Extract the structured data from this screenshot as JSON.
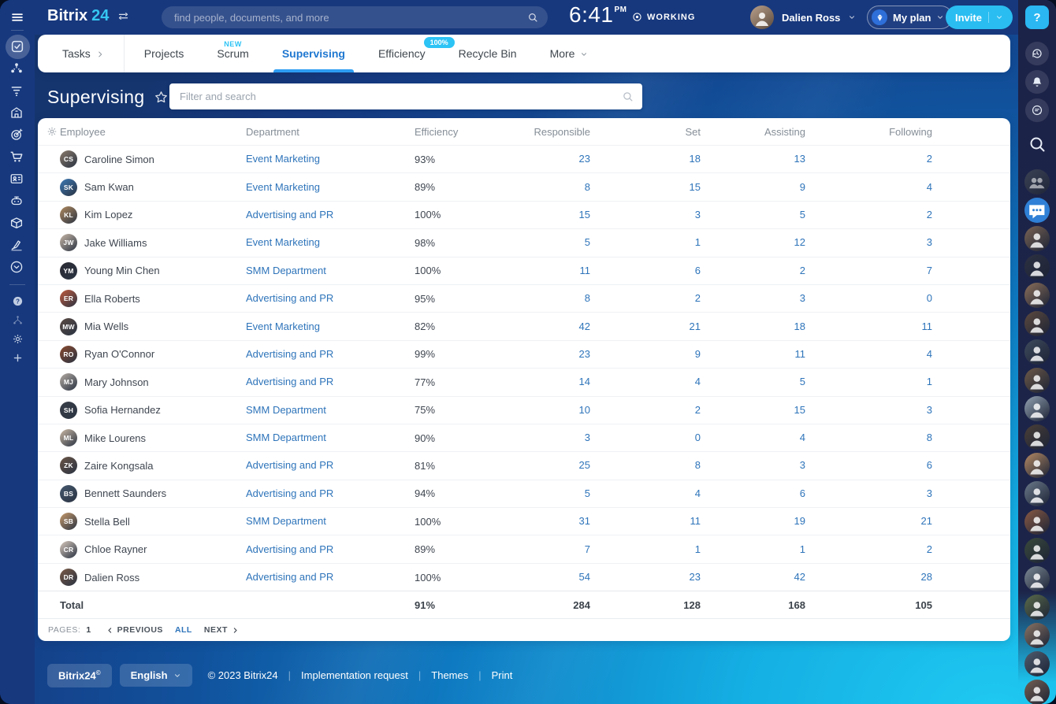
{
  "topbar": {
    "logo_part1": "Bitrix",
    "logo_part2": "24",
    "search_placeholder": "find people, documents, and more",
    "time": "6:41",
    "meridiem": "PM",
    "status": "WORKING",
    "user_name": "Dalien Ross",
    "plan_label": "My plan",
    "invite_label": "Invite",
    "help_label": "?"
  },
  "left_rail": {
    "main_items": [
      {
        "name": "tasks",
        "active": true
      },
      {
        "name": "collaboration",
        "active": false
      },
      {
        "name": "crm",
        "active": false
      },
      {
        "name": "company",
        "active": false
      },
      {
        "name": "marketing",
        "active": false
      },
      {
        "name": "sales",
        "active": false
      },
      {
        "name": "hr",
        "active": false
      },
      {
        "name": "automation",
        "active": false
      },
      {
        "name": "inventory",
        "active": false
      },
      {
        "name": "sign",
        "active": false
      },
      {
        "name": "collapse",
        "active": false
      }
    ],
    "bottom_items": [
      {
        "name": "help"
      },
      {
        "name": "sitemap"
      },
      {
        "name": "settings"
      },
      {
        "name": "add"
      }
    ]
  },
  "tabs": [
    {
      "label": "Tasks",
      "chevron": "right",
      "divider_after": true
    },
    {
      "label": "Projects"
    },
    {
      "label": "Scrum",
      "badge": "NEW",
      "badge_type": "text"
    },
    {
      "label": "Supervising",
      "active": true
    },
    {
      "label": "Efficiency",
      "badge": "100%",
      "badge_type": "pill"
    },
    {
      "label": "Recycle Bin"
    },
    {
      "label": "More",
      "chevron": "down"
    }
  ],
  "page": {
    "title": "Supervising",
    "filter_placeholder": "Filter and search"
  },
  "table": {
    "headers": [
      "Employee",
      "Department",
      "Efficiency",
      "Responsible",
      "Set",
      "Assisting",
      "Following"
    ],
    "rows": [
      {
        "name": "Caroline Simon",
        "department": "Event Marketing",
        "efficiency": "93%",
        "responsible": "23",
        "set": "18",
        "assisting": "13",
        "following": "2",
        "avatar_color": "#8a7a6b"
      },
      {
        "name": "Sam Kwan",
        "department": "Event Marketing",
        "efficiency": "89%",
        "responsible": "8",
        "set": "15",
        "assisting": "9",
        "following": "4",
        "avatar_color": "#3d7ab5"
      },
      {
        "name": "Kim Lopez",
        "department": "Advertising and PR",
        "efficiency": "100%",
        "responsible": "15",
        "set": "3",
        "assisting": "5",
        "following": "2",
        "avatar_color": "#b08a5f"
      },
      {
        "name": "Jake Williams",
        "department": "Event Marketing",
        "efficiency": "98%",
        "responsible": "5",
        "set": "1",
        "assisting": "12",
        "following": "3",
        "avatar_color": "#c9b8a8"
      },
      {
        "name": "Young Min Chen",
        "department": "SMM Department",
        "efficiency": "100%",
        "responsible": "11",
        "set": "6",
        "assisting": "2",
        "following": "7",
        "avatar_color": "#2b2b33"
      },
      {
        "name": "Ella Roberts",
        "department": "Advertising and PR",
        "efficiency": "95%",
        "responsible": "8",
        "set": "2",
        "assisting": "3",
        "following": "0",
        "avatar_color": "#c05a3e"
      },
      {
        "name": "Mia Wells",
        "department": "Event Marketing",
        "efficiency": "82%",
        "responsible": "42",
        "set": "21",
        "assisting": "18",
        "following": "11",
        "avatar_color": "#5a4a42"
      },
      {
        "name": "Ryan O'Connor",
        "department": "Advertising and PR",
        "efficiency": "99%",
        "responsible": "23",
        "set": "9",
        "assisting": "11",
        "following": "4",
        "avatar_color": "#8a4a2e"
      },
      {
        "name": "Mary Johnson",
        "department": "Advertising and PR",
        "efficiency": "77%",
        "responsible": "14",
        "set": "4",
        "assisting": "5",
        "following": "1",
        "avatar_color": "#b5aca4"
      },
      {
        "name": "Sofia Hernandez",
        "department": "SMM Department",
        "efficiency": "75%",
        "responsible": "10",
        "set": "2",
        "assisting": "15",
        "following": "3",
        "avatar_color": "#3a3f47"
      },
      {
        "name": "Mike Lourens",
        "department": "SMM Department",
        "efficiency": "90%",
        "responsible": "3",
        "set": "0",
        "assisting": "4",
        "following": "8",
        "avatar_color": "#cbb9a5"
      },
      {
        "name": "Zaire Kongsala",
        "department": "Advertising and PR",
        "efficiency": "81%",
        "responsible": "25",
        "set": "8",
        "assisting": "3",
        "following": "6",
        "avatar_color": "#6b5546"
      },
      {
        "name": "Bennett Saunders",
        "department": "Advertising and PR",
        "efficiency": "94%",
        "responsible": "5",
        "set": "4",
        "assisting": "6",
        "following": "3",
        "avatar_color": "#46586e"
      },
      {
        "name": "Stella Bell",
        "department": "SMM Department",
        "efficiency": "100%",
        "responsible": "31",
        "set": "11",
        "assisting": "19",
        "following": "21",
        "avatar_color": "#c79a6b"
      },
      {
        "name": "Chloe Rayner",
        "department": "Advertising and PR",
        "efficiency": "89%",
        "responsible": "7",
        "set": "1",
        "assisting": "1",
        "following": "2",
        "avatar_color": "#d8c9bd"
      },
      {
        "name": "Dalien Ross",
        "department": "Advertising and PR",
        "efficiency": "100%",
        "responsible": "54",
        "set": "23",
        "assisting": "42",
        "following": "28",
        "avatar_color": "#7a5a46"
      }
    ],
    "total": {
      "label": "Total",
      "efficiency": "91%",
      "responsible": "284",
      "set": "128",
      "assisting": "168",
      "following": "105"
    }
  },
  "pagination": {
    "pages_label": "PAGES:",
    "page": "1",
    "previous": "PREVIOUS",
    "all": "ALL",
    "next": "NEXT"
  },
  "footer": {
    "brand": "Bitrix24",
    "brand_sup": "©",
    "language": "English",
    "copyright": "© 2023 Bitrix24",
    "links": [
      "Implementation request",
      "Themes",
      "Print"
    ]
  },
  "right_rail": {
    "avatar_colors": [
      "#7a6455",
      "#2d3142",
      "#8c6f5a",
      "#5d4a3f",
      "#3f4b5e",
      "#6e5a48",
      "#93a3b3",
      "#4a3f38",
      "#b58a64",
      "#6b7a8a",
      "#8a5a44",
      "#3a4a3c",
      "#7d8a96",
      "#5a6b4a",
      "#8a7464",
      "#4f5d6e",
      "#756052"
    ]
  },
  "colors": {
    "accent_cyan": "#2abdf1",
    "link_blue": "#2e74ba",
    "active_tab_blue": "#1f78d1",
    "topbar_blue": "#17387d",
    "rail_navy": "#1d2449"
  }
}
